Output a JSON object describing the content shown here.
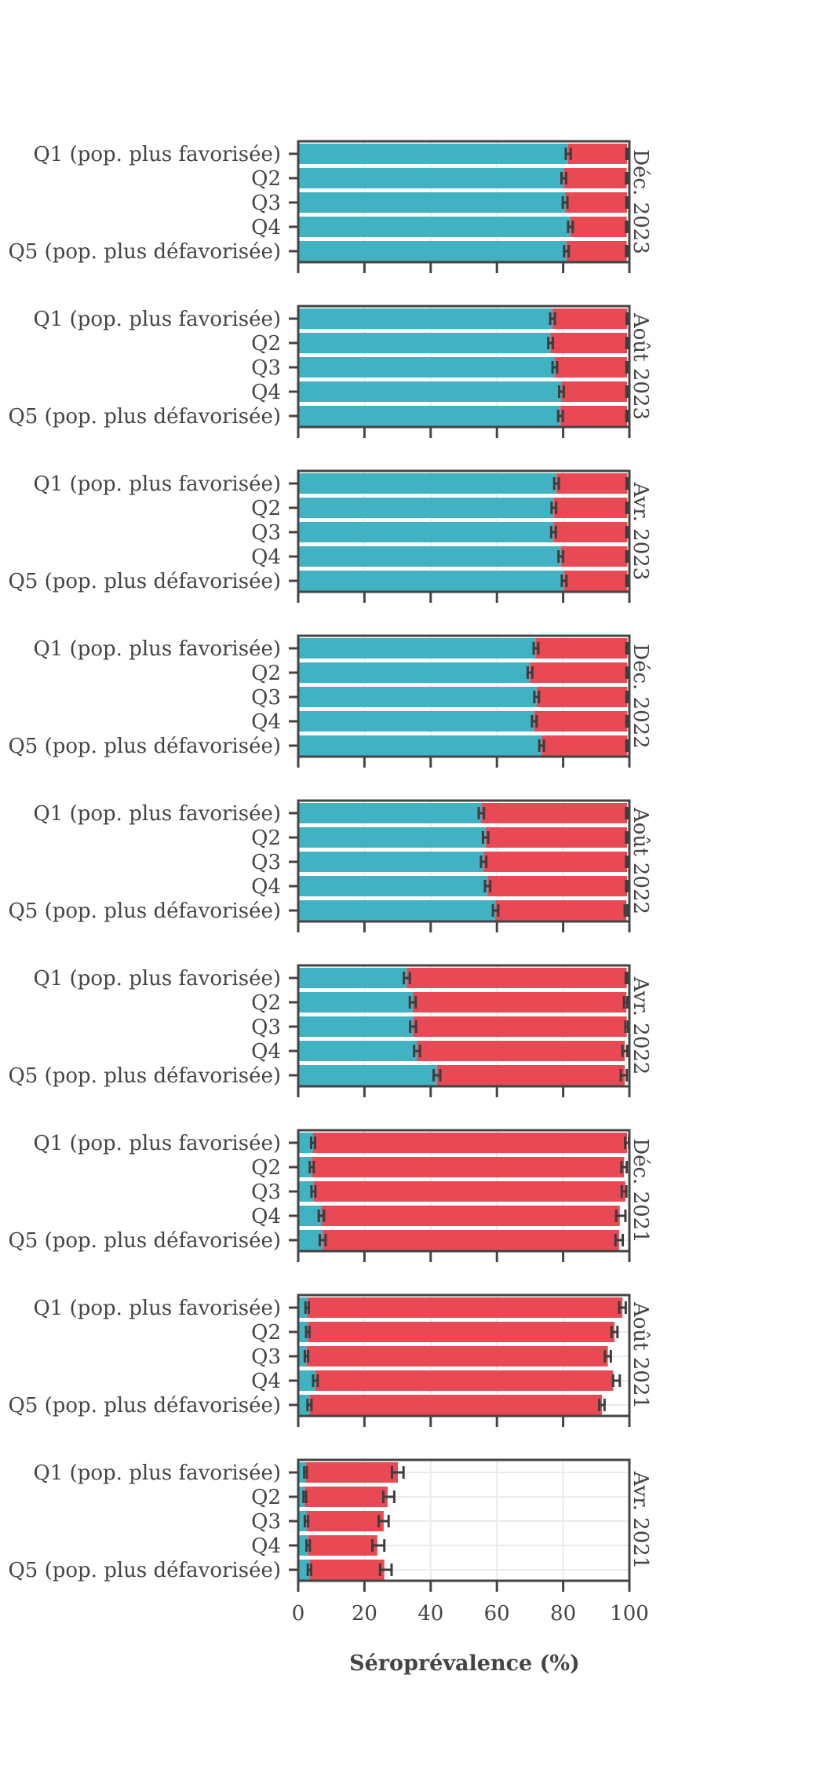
{
  "chart_data": {
    "type": "bar",
    "orientation": "horizontal",
    "stacked": true,
    "xlabel": "Séroprévalence (%)",
    "xlim": [
      0,
      100
    ],
    "xticks": [
      "0",
      "20",
      "40",
      "60",
      "80",
      "100"
    ],
    "grid": true,
    "colors": {
      "infection_and_vaccination": "#3aafbf",
      "vaccination_only": "#e8434e",
      "error_bar": "#3d3d3d",
      "frame": "#444444",
      "grid": "#ebebeb"
    },
    "categories": [
      "Q1 (pop. plus favorisée)",
      "Q2",
      "Q3",
      "Q4",
      "Q5 (pop. plus défavorisée)"
    ],
    "panels": [
      {
        "period": "Déc. 2023",
        "series": [
          {
            "values": [
              81.5,
              80.2,
              80.6,
              82.2,
              81.0
            ],
            "ci": [
              [
                80.8,
                82.3
              ],
              [
                79.5,
                80.9
              ],
              [
                79.9,
                81.3
              ],
              [
                81.5,
                82.9
              ],
              [
                80.3,
                81.7
              ]
            ]
          },
          {
            "values": [
              17.8,
              19.0,
              18.7,
              17.0,
              18.2
            ],
            "ci": [
              [
                99.1,
                99.6
              ],
              [
                99.0,
                99.5
              ],
              [
                99.1,
                99.6
              ],
              [
                99.0,
                99.5
              ],
              [
                99.0,
                99.5
              ]
            ]
          }
        ]
      },
      {
        "period": "Août 2023",
        "series": [
          {
            "values": [
              76.8,
              76.2,
              77.5,
              79.5,
              79.2
            ],
            "ci": [
              [
                76.1,
                77.5
              ],
              [
                75.5,
                76.9
              ],
              [
                76.8,
                78.2
              ],
              [
                78.8,
                80.2
              ],
              [
                78.5,
                79.9
              ]
            ]
          },
          {
            "values": [
              22.6,
              23.1,
              21.8,
              19.8,
              20.1
            ],
            "ci": [
              [
                99.2,
                99.7
              ],
              [
                99.1,
                99.6
              ],
              [
                99.1,
                99.6
              ],
              [
                99.1,
                99.6
              ],
              [
                99.1,
                99.6
              ]
            ]
          }
        ]
      },
      {
        "period": "Avr. 2023",
        "series": [
          {
            "values": [
              78.0,
              77.2,
              77.1,
              79.3,
              80.3
            ],
            "ci": [
              [
                77.3,
                78.7
              ],
              [
                76.5,
                77.9
              ],
              [
                76.4,
                77.8
              ],
              [
                78.6,
                80.0
              ],
              [
                79.6,
                81.0
              ]
            ]
          },
          {
            "values": [
              21.4,
              22.2,
              22.3,
              20.1,
              19.1
            ],
            "ci": [
              [
                99.2,
                99.7
              ],
              [
                99.1,
                99.6
              ],
              [
                99.1,
                99.6
              ],
              [
                99.1,
                99.6
              ],
              [
                99.1,
                99.6
              ]
            ]
          }
        ]
      },
      {
        "period": "Déc. 2022",
        "series": [
          {
            "values": [
              71.8,
              70.0,
              72.0,
              71.3,
              73.5
            ],
            "ci": [
              [
                71.1,
                72.5
              ],
              [
                69.3,
                70.7
              ],
              [
                71.3,
                72.7
              ],
              [
                70.6,
                72.0
              ],
              [
                72.8,
                74.2
              ]
            ]
          },
          {
            "values": [
              27.6,
              29.4,
              27.4,
              28.1,
              25.9
            ],
            "ci": [
              [
                99.1,
                99.6
              ],
              [
                99.1,
                99.6
              ],
              [
                99.1,
                99.6
              ],
              [
                99.1,
                99.6
              ],
              [
                99.1,
                99.6
              ]
            ]
          }
        ]
      },
      {
        "period": "Août 2022",
        "series": [
          {
            "values": [
              55.3,
              56.6,
              56.0,
              57.2,
              59.6
            ],
            "ci": [
              [
                54.5,
                56.1
              ],
              [
                55.8,
                57.4
              ],
              [
                55.2,
                56.8
              ],
              [
                56.4,
                58.0
              ],
              [
                58.8,
                60.4
              ]
            ]
          },
          {
            "values": [
              44.0,
              42.7,
              43.3,
              42.1,
              39.5
            ],
            "ci": [
              [
                99.0,
                99.6
              ],
              [
                99.0,
                99.6
              ],
              [
                99.0,
                99.6
              ],
              [
                99.0,
                99.6
              ],
              [
                98.6,
                99.4
              ]
            ]
          }
        ]
      },
      {
        "period": "Avr. 2022",
        "series": [
          {
            "values": [
              32.8,
              34.6,
              34.7,
              35.9,
              41.9
            ],
            "ci": [
              [
                31.9,
                33.7
              ],
              [
                33.7,
                35.5
              ],
              [
                33.8,
                35.6
              ],
              [
                35.0,
                36.8
              ],
              [
                40.9,
                42.9
              ]
            ]
          },
          {
            "values": [
              66.4,
              64.5,
              64.5,
              62.7,
              56.7
            ],
            "ci": [
              [
                98.9,
                99.5
              ],
              [
                98.4,
                99.4
              ],
              [
                98.8,
                99.6
              ],
              [
                97.9,
                99.3
              ],
              [
                97.4,
                99.2
              ]
            ]
          }
        ]
      },
      {
        "period": "Déc. 2021",
        "series": [
          {
            "values": [
              4.5,
              4.1,
              4.6,
              7.0,
              7.4
            ],
            "ci": [
              [
                3.9,
                5.1
              ],
              [
                3.5,
                4.7
              ],
              [
                4.0,
                5.2
              ],
              [
                6.2,
                7.8
              ],
              [
                6.5,
                8.3
              ]
            ]
          },
          {
            "values": [
              94.8,
              94.3,
              94.2,
              90.1,
              89.5
            ],
            "ci": [
              [
                98.7,
                99.9
              ],
              [
                97.6,
                99.2
              ],
              [
                97.7,
                99.1
              ],
              [
                96.0,
                98.8
              ],
              [
                95.8,
                98.0
              ]
            ]
          }
        ]
      },
      {
        "period": "Août 2021",
        "series": [
          {
            "values": [
              2.7,
              2.9,
              2.5,
              5.2,
              3.4
            ],
            "ci": [
              [
                2.2,
                3.2
              ],
              [
                2.4,
                3.4
              ],
              [
                2.0,
                3.0
              ],
              [
                4.5,
                5.9
              ],
              [
                2.8,
                4.0
              ]
            ]
          },
          {
            "values": [
              95.2,
              92.6,
              91.0,
              89.9,
              88.3
            ],
            "ci": [
              [
                96.9,
                98.9
              ],
              [
                94.6,
                96.4
              ],
              [
                92.6,
                94.4
              ],
              [
                95.1,
                97.1
              ],
              [
                90.9,
                92.5
              ]
            ]
          }
        ]
      },
      {
        "period": "Avr. 2021",
        "series": [
          {
            "values": [
              2.2,
              2.0,
              2.5,
              3.0,
              3.4
            ],
            "ci": [
              [
                1.8,
                2.6
              ],
              [
                1.6,
                2.4
              ],
              [
                2.0,
                3.0
              ],
              [
                2.5,
                3.5
              ],
              [
                2.9,
                3.9
              ]
            ]
          },
          {
            "values": [
              27.9,
              25.0,
              23.3,
              20.9,
              22.6
            ],
            "ci": [
              [
                28.3,
                31.8
              ],
              [
                25.7,
                29.0
              ],
              [
                24.3,
                27.3
              ],
              [
                22.4,
                26.0
              ],
              [
                24.7,
                28.2
              ]
            ]
          }
        ]
      }
    ]
  }
}
